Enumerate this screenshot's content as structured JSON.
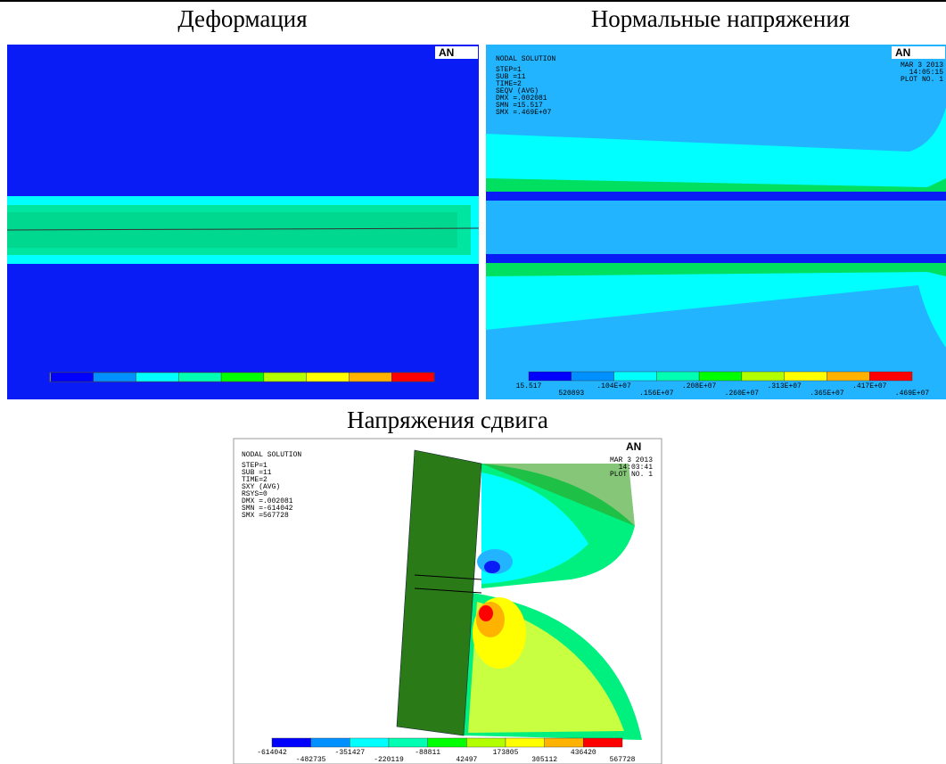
{
  "panels": [
    {
      "title": "Деформация",
      "logo": "AN"
    },
    {
      "title": "Нормальные напряжения",
      "logo": "AN",
      "info": [
        "NODAL SOLUTION",
        "STEP=1",
        "SUB =11",
        "TIME=2",
        "SEQV     (AVG)",
        "DMX =.002081",
        "SMN =15.517",
        "SMX =.469E+07"
      ],
      "date": "MAR  3 2013",
      "time": "14:05:15",
      "plot": "PLOT NO.   1",
      "legend": [
        "15.517",
        "520893",
        ".104E+07",
        ".156E+07",
        ".208E+07",
        ".260E+07",
        ".313E+07",
        ".365E+07",
        ".417E+07",
        ".469E+07"
      ]
    },
    {
      "title": "Напряжения сдвига",
      "logo": "AN",
      "info": [
        "NODAL SOLUTION",
        "STEP=1",
        "SUB =11",
        "TIME=2",
        "SXY      (AVG)",
        "RSYS=0",
        "DMX =.002081",
        "SMN =-614042",
        "SMX =567728"
      ],
      "date": "MAR  3 2013",
      "time": "14:03:41",
      "plot": "PLOT NO.   1",
      "legend": [
        "-614042",
        "-482735",
        "-351427",
        "-220119",
        "-88811",
        "42497",
        "173805",
        "305112",
        "436420",
        "567728"
      ]
    }
  ]
}
